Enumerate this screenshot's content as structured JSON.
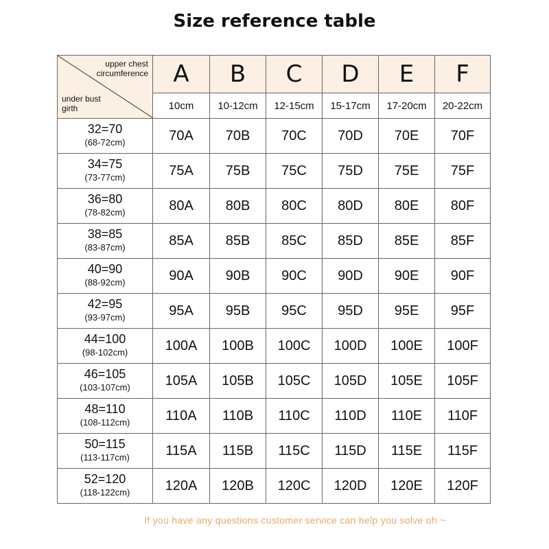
{
  "title": "Size reference table",
  "header": {
    "corner_top": "upper chest circumference",
    "corner_bottom": "under bust girth",
    "columns": [
      {
        "letter": "A",
        "cm": "10cm"
      },
      {
        "letter": "B",
        "cm": "10-12cm"
      },
      {
        "letter": "C",
        "cm": "12-15cm"
      },
      {
        "letter": "D",
        "cm": "15-17cm"
      },
      {
        "letter": "E",
        "cm": "17-20cm"
      },
      {
        "letter": "F",
        "cm": "20-22cm"
      }
    ]
  },
  "rows": [
    {
      "label": "32=70",
      "range": "(68-72cm)",
      "sizes": [
        "70A",
        "70B",
        "70C",
        "70D",
        "70E",
        "70F"
      ]
    },
    {
      "label": "34=75",
      "range": "(73-77cm)",
      "sizes": [
        "75A",
        "75B",
        "75C",
        "75D",
        "75E",
        "75F"
      ]
    },
    {
      "label": "36=80",
      "range": "(78-82cm)",
      "sizes": [
        "80A",
        "80B",
        "80C",
        "80D",
        "80E",
        "80F"
      ]
    },
    {
      "label": "38=85",
      "range": "(83-87cm)",
      "sizes": [
        "85A",
        "85B",
        "85C",
        "85D",
        "85E",
        "85F"
      ]
    },
    {
      "label": "40=90",
      "range": "(88-92cm)",
      "sizes": [
        "90A",
        "90B",
        "90C",
        "90D",
        "90E",
        "90F"
      ]
    },
    {
      "label": "42=95",
      "range": "(93-97cm)",
      "sizes": [
        "95A",
        "95B",
        "95C",
        "95D",
        "95E",
        "95F"
      ]
    },
    {
      "label": "44=100",
      "range": "(98-102cm)",
      "sizes": [
        "100A",
        "100B",
        "100C",
        "100D",
        "100E",
        "100F"
      ]
    },
    {
      "label": "46=105",
      "range": "(103-107cm)",
      "sizes": [
        "105A",
        "105B",
        "105C",
        "105D",
        "105E",
        "105F"
      ]
    },
    {
      "label": "48=110",
      "range": "(108-112cm)",
      "sizes": [
        "110A",
        "110B",
        "110C",
        "110D",
        "110E",
        "110F"
      ]
    },
    {
      "label": "50=115",
      "range": "(113-117cm)",
      "sizes": [
        "115A",
        "115B",
        "115C",
        "115D",
        "115E",
        "115F"
      ]
    },
    {
      "label": "52=120",
      "range": "(118-122cm)",
      "sizes": [
        "120A",
        "120B",
        "120C",
        "120D",
        "120E",
        "120F"
      ]
    }
  ],
  "footer": "If you have any questions customer service can help you solve oh ~",
  "colors": {
    "header_bg": "#fcefe3",
    "footer_text": "#e8a868",
    "grid": "#666666"
  }
}
